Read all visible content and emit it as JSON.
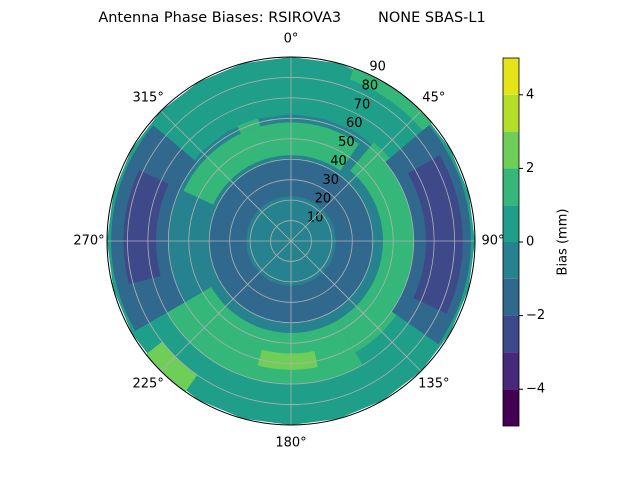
{
  "chart_data": {
    "type": "polar_contour",
    "title": "Antenna Phase Biases: RSIROVA3        NONE SBAS-L1",
    "theta_ticks": [
      {
        "value": 0,
        "label": "0°"
      },
      {
        "value": 45,
        "label": "45°"
      },
      {
        "value": 90,
        "label": "90°"
      },
      {
        "value": 135,
        "label": "135°"
      },
      {
        "value": 180,
        "label": "180°"
      },
      {
        "value": 225,
        "label": "225°"
      },
      {
        "value": 270,
        "label": "270°"
      },
      {
        "value": 315,
        "label": "315°"
      }
    ],
    "rlim": [
      0,
      90
    ],
    "rticks": [
      10,
      20,
      30,
      40,
      50,
      60,
      70,
      80,
      90
    ],
    "grid": true,
    "colorbar": {
      "label": "Bias (mm)",
      "levels": [
        -5,
        -4,
        -3,
        -2,
        -1,
        0,
        1,
        2,
        3,
        4,
        5
      ],
      "colors": [
        "#440154",
        "#482878",
        "#3e4989",
        "#31688e",
        "#26828e",
        "#1f9e89",
        "#35b779",
        "#6ece58",
        "#b5de2b",
        "#e5e419"
      ],
      "ticks": [
        {
          "value": -4,
          "label": "−4"
        },
        {
          "value": -2,
          "label": "−2"
        },
        0,
        2,
        4
      ]
    }
  }
}
